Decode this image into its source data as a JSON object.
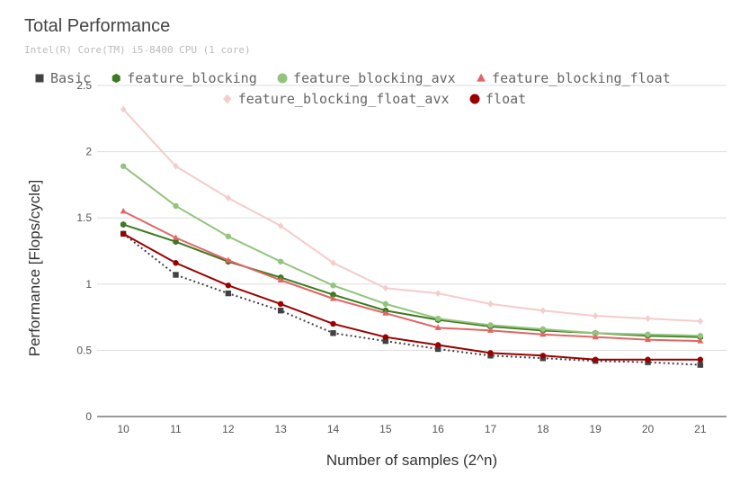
{
  "chart_data": {
    "type": "line",
    "title": "Total Performance",
    "subtitle": "Intel(R) Core(TM) i5-8400 CPU (1 core)",
    "xlabel": "Number of samples (2^n)",
    "ylabel": "Performance [Flops/cycle]",
    "categories": [
      "10",
      "11",
      "12",
      "13",
      "14",
      "15",
      "16",
      "17",
      "18",
      "19",
      "20",
      "21"
    ],
    "ylim": [
      0,
      2.5
    ],
    "yticks": [
      "0",
      "0.5",
      "1",
      "1.5",
      "2",
      "2.5"
    ],
    "grid": true,
    "legend_position": "top",
    "series": [
      {
        "name": "Basic",
        "color": "#424242",
        "marker": "square",
        "dash": true,
        "values": [
          1.38,
          1.07,
          0.93,
          0.8,
          0.63,
          0.57,
          0.51,
          0.46,
          0.44,
          0.42,
          0.41,
          0.39
        ]
      },
      {
        "name": "feature_blocking",
        "color": "#3b7a1e",
        "marker": "hexagon",
        "dash": false,
        "values": [
          1.45,
          1.32,
          1.17,
          1.05,
          0.92,
          0.8,
          0.73,
          0.68,
          0.65,
          0.63,
          0.61,
          0.6
        ]
      },
      {
        "name": "feature_blocking_avx",
        "color": "#93c47d",
        "marker": "circle",
        "dash": false,
        "values": [
          1.89,
          1.59,
          1.36,
          1.17,
          0.99,
          0.85,
          0.74,
          0.69,
          0.66,
          0.63,
          0.62,
          0.61
        ]
      },
      {
        "name": "feature_blocking_float",
        "color": "#e06666",
        "marker": "triangle",
        "dash": false,
        "values": [
          1.55,
          1.35,
          1.18,
          1.03,
          0.89,
          0.78,
          0.67,
          0.65,
          0.62,
          0.6,
          0.58,
          0.57
        ]
      },
      {
        "name": "feature_blocking_float_avx",
        "color": "#f4cccc",
        "marker": "diamond",
        "dash": false,
        "values": [
          2.32,
          1.89,
          1.65,
          1.44,
          1.16,
          0.97,
          0.93,
          0.85,
          0.8,
          0.76,
          0.74,
          0.72
        ]
      },
      {
        "name": "float",
        "color": "#990000",
        "marker": "circle",
        "dash": false,
        "values": [
          1.38,
          1.16,
          0.99,
          0.85,
          0.7,
          0.6,
          0.54,
          0.48,
          0.46,
          0.43,
          0.43,
          0.43
        ]
      }
    ]
  }
}
